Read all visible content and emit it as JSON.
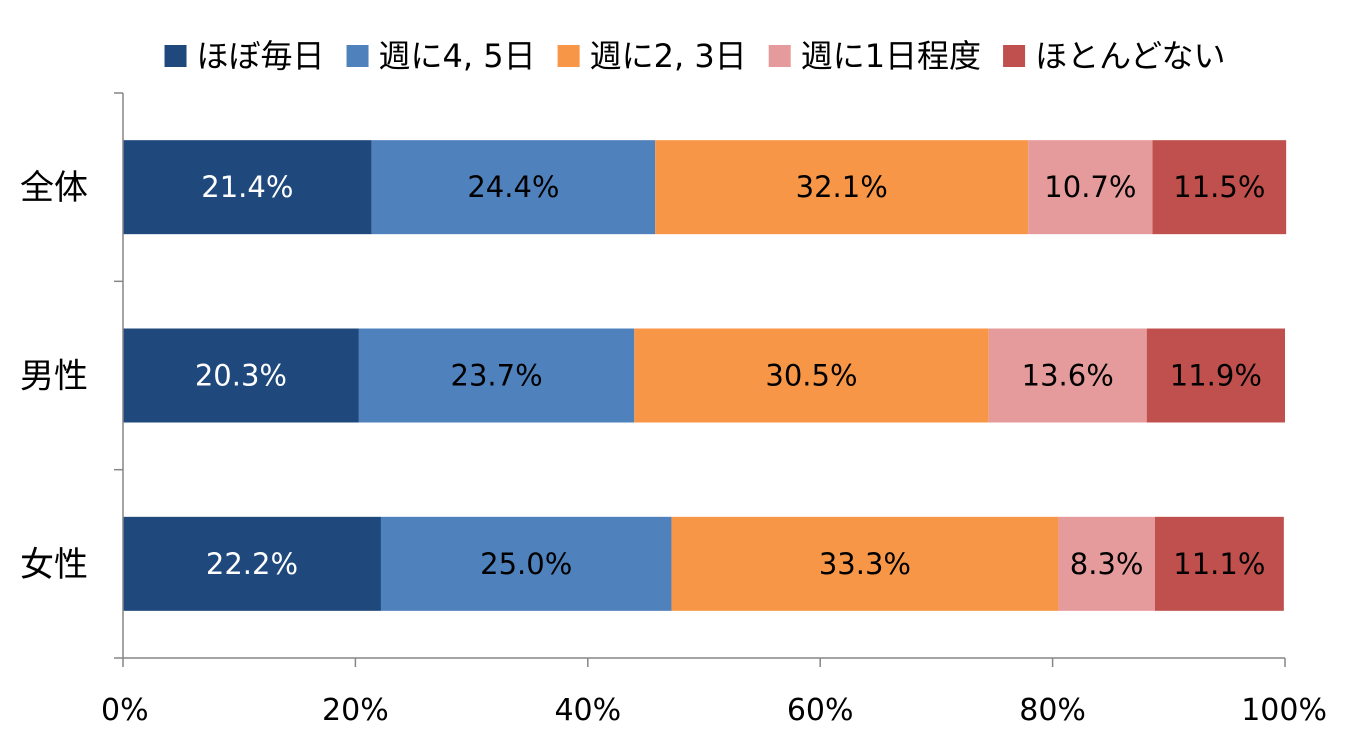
{
  "chart_data": {
    "type": "bar",
    "orientation": "horizontal",
    "stacked": true,
    "title": "",
    "xlabel": "",
    "ylabel": "",
    "xlim": [
      0,
      100
    ],
    "x_ticks": [
      "0%",
      "20%",
      "40%",
      "60%",
      "80%",
      "100%"
    ],
    "categories": [
      "全体",
      "男性",
      "女性"
    ],
    "series": [
      {
        "name": "ほぼ毎日",
        "color": "#1F497D",
        "label_color": "#ffffff",
        "values": [
          21.4,
          20.3,
          22.2
        ],
        "labels": [
          "21.4%",
          "20.3%",
          "22.2%"
        ]
      },
      {
        "name": "週に4, 5日",
        "color": "#4F81BD",
        "label_color": "#000000",
        "values": [
          24.4,
          23.7,
          25.0
        ],
        "labels": [
          "24.4%",
          "23.7%",
          "25.0%"
        ]
      },
      {
        "name": "週に2, 3日",
        "color": "#F79646",
        "label_color": "#000000",
        "values": [
          32.1,
          30.5,
          33.3
        ],
        "labels": [
          "32.1%",
          "30.5%",
          "33.3%"
        ]
      },
      {
        "name": "週に1日程度",
        "color": "#E59B9B",
        "label_color": "#000000",
        "values": [
          10.7,
          13.6,
          8.3
        ],
        "labels": [
          "10.7%",
          "13.6%",
          "8.3%"
        ]
      },
      {
        "name": "ほとんどない",
        "color": "#C0504D",
        "label_color": "#000000",
        "values": [
          11.5,
          11.9,
          11.1
        ],
        "labels": [
          "11.5%",
          "11.9%",
          "11.1%"
        ]
      }
    ],
    "legend_position": "top",
    "grid": false
  }
}
